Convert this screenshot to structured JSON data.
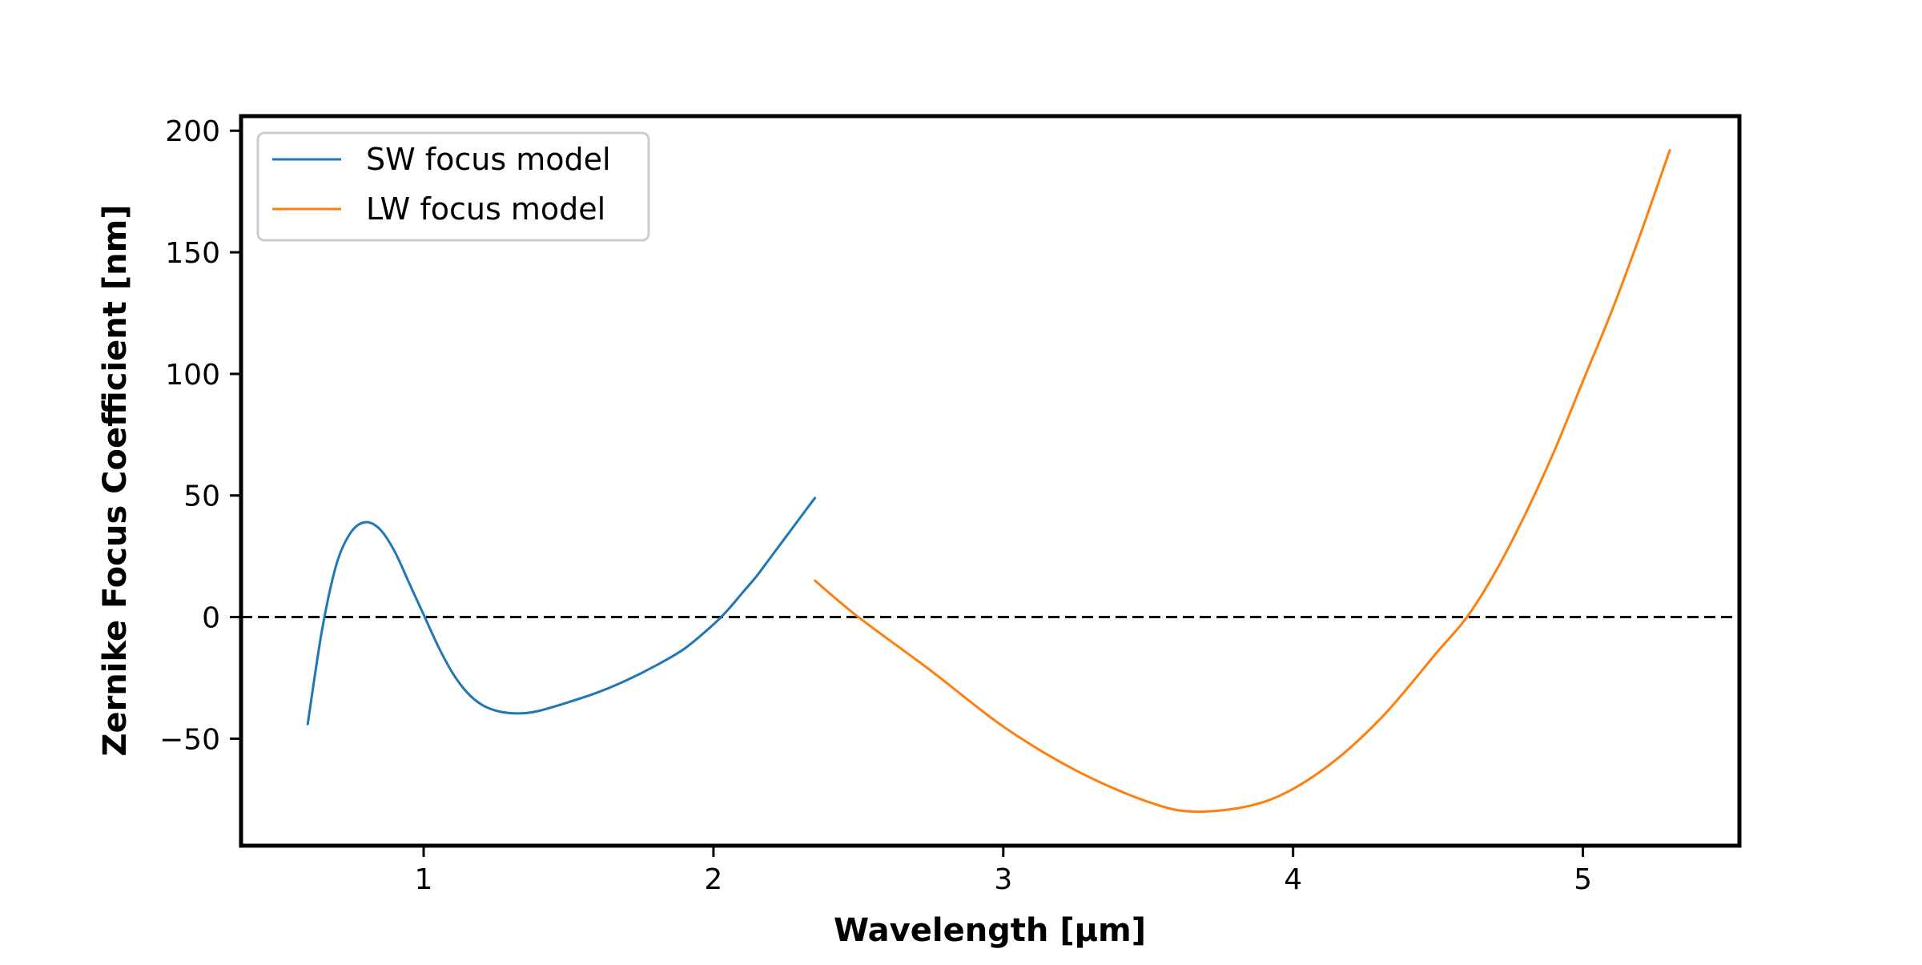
{
  "chart_data": {
    "type": "line",
    "title": "",
    "xlabel": "Wavelength [μm]",
    "ylabel": "Zernike Focus Coefficient [nm]",
    "xlim": [
      0.37,
      5.54
    ],
    "ylim": [
      -94,
      206
    ],
    "xticks": [
      1,
      2,
      3,
      4,
      5
    ],
    "yticks": [
      -50,
      0,
      50,
      100,
      150,
      200
    ],
    "xtick_labels": [
      "1",
      "2",
      "3",
      "4",
      "5"
    ],
    "ytick_labels": [
      "−50",
      "0",
      "50",
      "100",
      "150",
      "200"
    ],
    "grid": false,
    "legend": "upper-left",
    "reference_line": {
      "y": 0,
      "style": "dashed",
      "color": "#000000"
    },
    "series": [
      {
        "name": "SW focus model",
        "color": "#1f77b4",
        "x": [
          0.6,
          0.65,
          0.7,
          0.75,
          0.8,
          0.85,
          0.9,
          0.95,
          1.0,
          1.05,
          1.1,
          1.15,
          1.2,
          1.25,
          1.3,
          1.35,
          1.4,
          1.5,
          1.6,
          1.7,
          1.8,
          1.9,
          2.0,
          2.05,
          2.1,
          2.15,
          2.2,
          2.25,
          2.3,
          2.35
        ],
        "y": [
          -44,
          -5,
          22,
          35,
          39,
          36,
          27,
          14,
          1,
          -12,
          -23,
          -31,
          -36,
          -38.5,
          -39.5,
          -39.5,
          -38.5,
          -35,
          -31,
          -26,
          -20,
          -13,
          -3,
          3,
          10,
          17,
          25,
          33,
          41,
          49
        ]
      },
      {
        "name": "LW focus model",
        "color": "#ff7f0e",
        "x": [
          2.35,
          2.5,
          2.75,
          3.0,
          3.25,
          3.5,
          3.67,
          3.9,
          4.1,
          4.3,
          4.5,
          4.6,
          4.7,
          4.8,
          4.9,
          5.0,
          5.1,
          5.2,
          5.3
        ],
        "y": [
          15,
          0,
          -22,
          -45,
          -63,
          -76,
          -80,
          -76,
          -63,
          -42,
          -14,
          0,
          19,
          42,
          68,
          97,
          126,
          158,
          192
        ]
      }
    ]
  }
}
